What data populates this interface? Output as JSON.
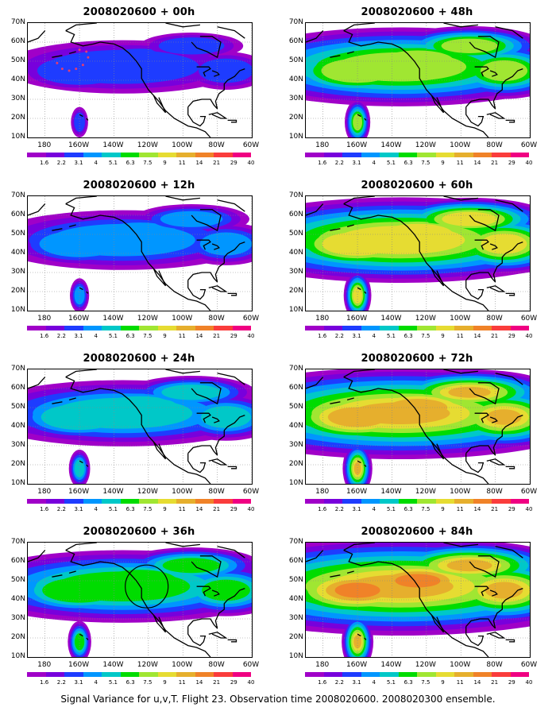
{
  "panels": [
    {
      "title": "2008020600 + 00h",
      "intensity": 0,
      "circle": false,
      "path": true
    },
    {
      "title": "2008020600 + 48h",
      "intensity": 4,
      "circle": false,
      "path": false
    },
    {
      "title": "2008020600 + 12h",
      "intensity": 1,
      "circle": false,
      "path": false
    },
    {
      "title": "2008020600 + 60h",
      "intensity": 5,
      "circle": false,
      "path": false
    },
    {
      "title": "2008020600 + 24h",
      "intensity": 2,
      "circle": false,
      "path": false
    },
    {
      "title": "2008020600 + 72h",
      "intensity": 6,
      "circle": false,
      "path": false
    },
    {
      "title": "2008020600 + 36h",
      "intensity": 3,
      "circle": true,
      "path": false
    },
    {
      "title": "2008020600 + 84h",
      "intensity": 7,
      "circle": false,
      "path": false
    }
  ],
  "axes": {
    "lat_labels": [
      "70N",
      "60N",
      "50N",
      "40N",
      "30N",
      "20N",
      "10N"
    ],
    "lon_labels": [
      "180",
      "160W",
      "140W",
      "120W",
      "100W",
      "80W",
      "60W"
    ]
  },
  "colorbar": {
    "labels": [
      "1.6",
      "2.2",
      "3.1",
      "4",
      "5.1",
      "6.3",
      "7.5",
      "9",
      "11",
      "14",
      "21",
      "29",
      "40"
    ],
    "colors": [
      "#a000c8",
      "#7800dc",
      "#1e3cff",
      "#0096ff",
      "#00c8c8",
      "#00dc00",
      "#a0e632",
      "#e6dc32",
      "#e6af2d",
      "#f08228",
      "#fa3c3c",
      "#f00082"
    ]
  },
  "caption": "Signal Variance for u,v,T. Flight 23. Observation time 2008020600. 2008020300 ensemble."
}
